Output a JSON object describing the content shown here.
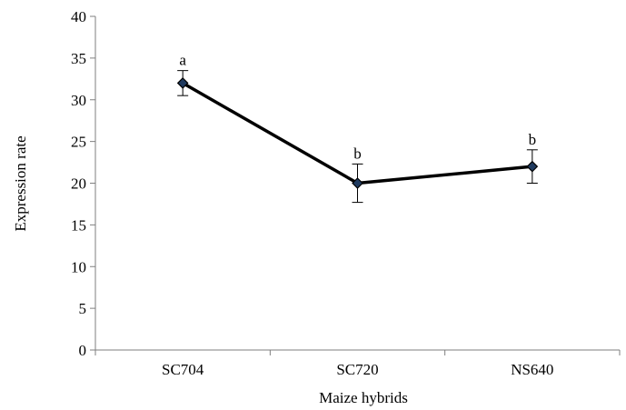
{
  "chart_data": {
    "type": "line",
    "title": "",
    "xlabel": "Maize hybrids",
    "ylabel": "Expression rate",
    "categories": [
      "SC704",
      "SC720",
      "NS640"
    ],
    "series": [
      {
        "values": [
          32,
          20,
          22
        ],
        "error_upper": [
          33.5,
          22.3,
          24.0
        ],
        "error_lower": [
          30.5,
          17.7,
          20.0
        ],
        "labels": [
          "a",
          "b",
          "b"
        ],
        "color": "#000000",
        "marker_color": "#1f3a5f"
      }
    ],
    "ylim": [
      0,
      40
    ],
    "yticks": [
      "0",
      "5",
      "10",
      "15",
      "20",
      "25",
      "30",
      "35",
      "40"
    ],
    "grid": false,
    "legend": "none"
  }
}
